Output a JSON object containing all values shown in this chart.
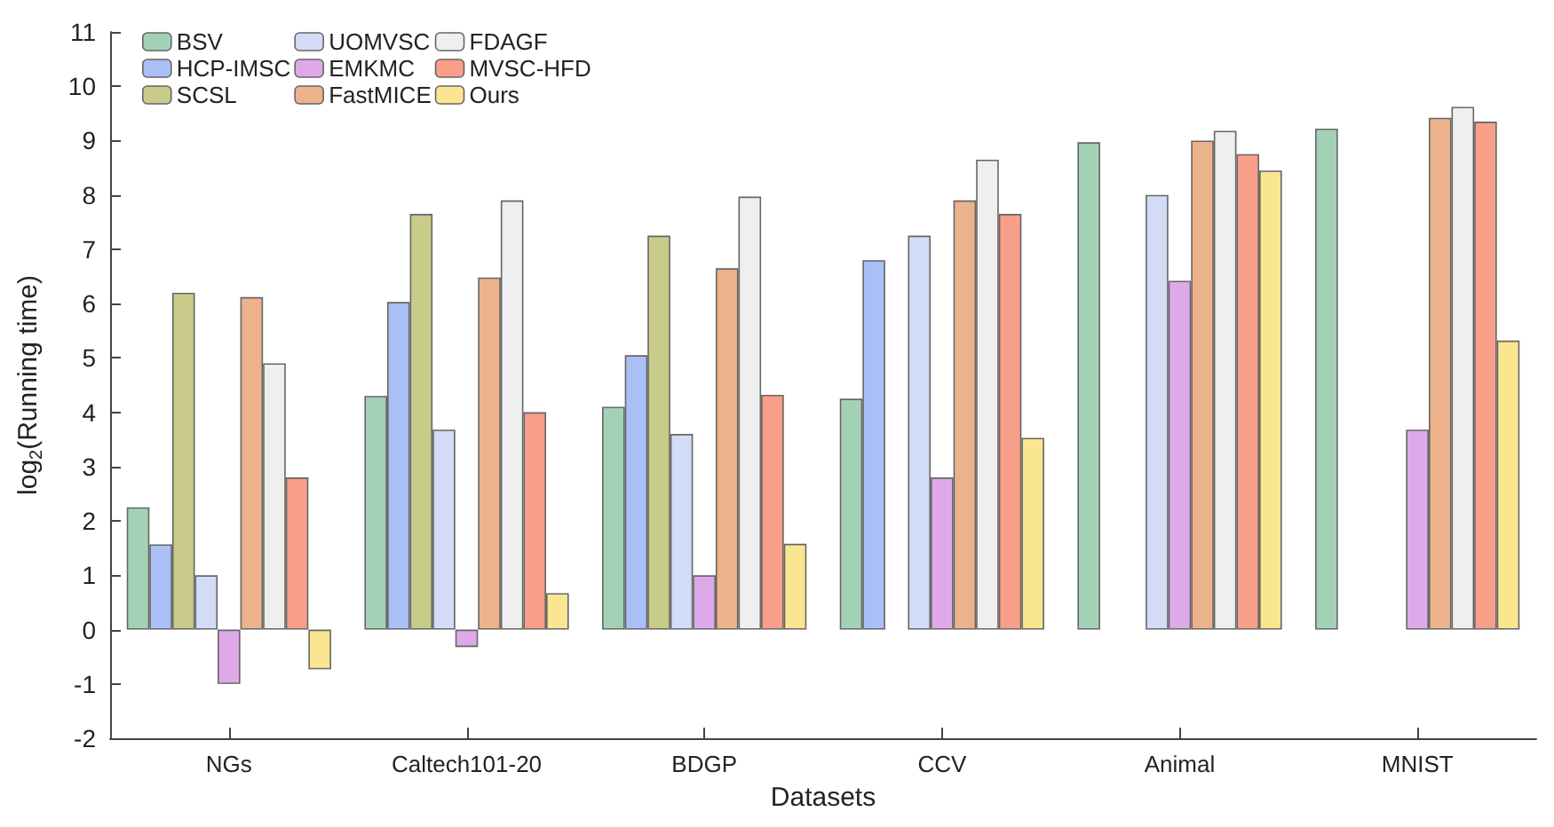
{
  "chart_data": {
    "type": "bar",
    "xlabel": "Datasets",
    "ylabel": "log$_{2}$(Running time)",
    "categories": [
      "NGs",
      "Caltech101-20",
      "BDGP",
      "CCV",
      "Animal",
      "MNIST"
    ],
    "ylim": [
      -2,
      11
    ],
    "yticks": [
      -2,
      -1,
      0,
      1,
      2,
      3,
      4,
      5,
      6,
      7,
      8,
      9,
      10,
      11
    ],
    "legend": "top left",
    "series": [
      {
        "name": "BSV",
        "color": "#a3d1b5",
        "values": [
          2.25,
          4.3,
          4.1,
          4.25,
          8.97,
          9.22
        ]
      },
      {
        "name": "HCP-IMSC",
        "color": "#aabff5",
        "values": [
          1.57,
          6.03,
          5.05,
          6.8,
          null,
          null
        ]
      },
      {
        "name": "SCSL",
        "color": "#c9cb8a",
        "values": [
          6.2,
          7.65,
          7.25,
          null,
          null,
          null
        ]
      },
      {
        "name": "UOMVSC",
        "color": "#d2dcf7",
        "values": [
          1.0,
          3.68,
          3.6,
          7.25,
          8.0,
          null
        ]
      },
      {
        "name": "EMKMC",
        "color": "#dfa9e9",
        "values": [
          -1.0,
          -0.32,
          1.0,
          2.8,
          6.42,
          3.68
        ]
      },
      {
        "name": "FastMICE",
        "color": "#ecb28b",
        "values": [
          6.12,
          6.48,
          6.65,
          7.9,
          9.0,
          9.42
        ]
      },
      {
        "name": "FDAGF",
        "color": "#efefef",
        "values": [
          4.9,
          7.9,
          7.97,
          8.65,
          9.18,
          9.62
        ]
      },
      {
        "name": "MVSC-HFD",
        "color": "#f79f89",
        "values": [
          2.8,
          4.0,
          4.32,
          7.65,
          8.75,
          9.35
        ]
      },
      {
        "name": "Ours",
        "color": "#fae591",
        "values": [
          -0.73,
          0.67,
          1.58,
          3.53,
          8.45,
          5.32
        ]
      }
    ]
  }
}
